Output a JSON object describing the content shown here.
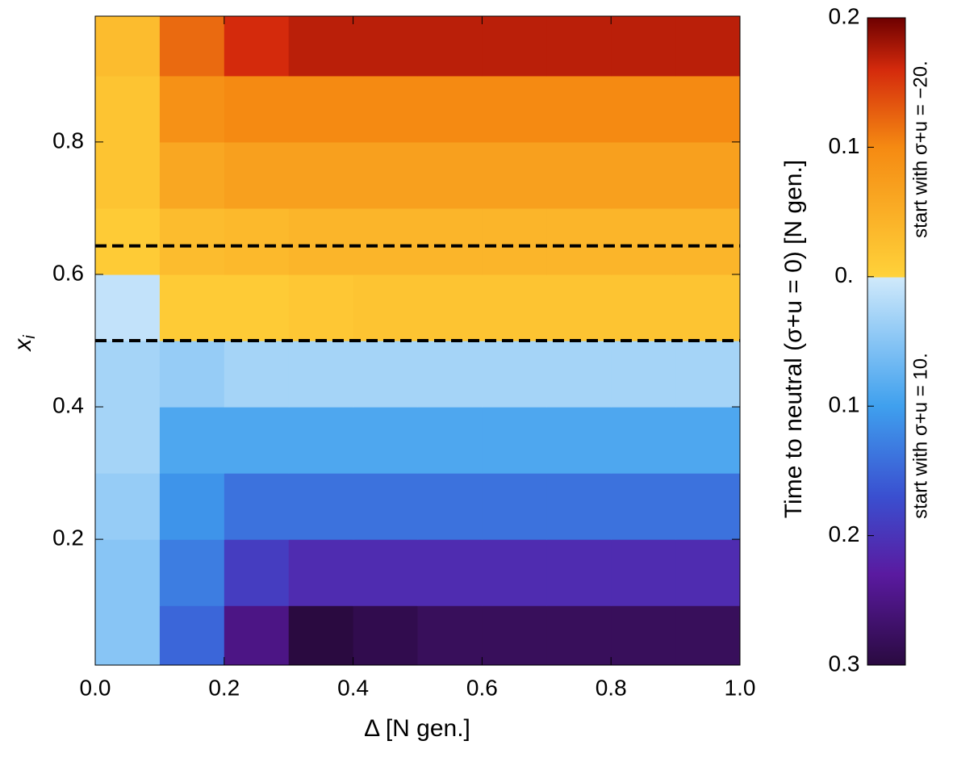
{
  "chart_data": {
    "type": "heatmap",
    "xlabel": "Δ  [N gen.]",
    "ylabel": "x",
    "ylabel_sub": "i",
    "colorbar_label": "Time to neutral (σ+u = 0)    [N gen.]",
    "annotations": [
      "start with  σ+u = −20.",
      "start with  σ+u = 10."
    ],
    "xlim": [
      0,
      1
    ],
    "ylim": [
      0.01,
      0.99
    ],
    "xticks": [
      {
        "value": 0,
        "label": "0.0"
      },
      0.2,
      0.4,
      0.6,
      0.8,
      {
        "value": 1,
        "label": "1.0"
      }
    ],
    "yticks": [
      0.2,
      0.4,
      0.6,
      0.8
    ],
    "hlines": [
      0.643,
      0.5
    ],
    "x": [
      0.05,
      0.15,
      0.25,
      0.35,
      0.45,
      0.55,
      0.65,
      0.75,
      0.85,
      0.95
    ],
    "y": [
      0.05,
      0.15,
      0.25,
      0.35,
      0.45,
      0.55,
      0.65,
      0.75,
      0.85,
      0.95
    ],
    "z": [
      [
        -0.05,
        -0.15,
        -0.25,
        -0.3,
        -0.29,
        -0.28,
        -0.28,
        -0.28,
        -0.28,
        -0.28
      ],
      [
        -0.05,
        -0.13,
        -0.19,
        -0.21,
        -0.21,
        -0.21,
        -0.21,
        -0.21,
        -0.21,
        -0.21
      ],
      [
        -0.04,
        -0.11,
        -0.14,
        -0.14,
        -0.14,
        -0.14,
        -0.14,
        -0.14,
        -0.14,
        -0.14
      ],
      [
        -0.03,
        -0.09,
        -0.09,
        -0.09,
        -0.09,
        -0.09,
        -0.09,
        -0.09,
        -0.09,
        -0.09
      ],
      [
        -0.03,
        -0.04,
        -0.03,
        -0.03,
        -0.03,
        -0.03,
        -0.03,
        -0.03,
        -0.03,
        -0.03
      ],
      [
        -0.01,
        0.01,
        0.01,
        0.015,
        0.02,
        0.02,
        0.02,
        0.02,
        0.02,
        0.02
      ],
      [
        0.01,
        0.03,
        0.035,
        0.04,
        0.04,
        0.04,
        0.04,
        0.04,
        0.04,
        0.04
      ],
      [
        0.02,
        0.06,
        0.07,
        0.07,
        0.07,
        0.07,
        0.07,
        0.07,
        0.07,
        0.07
      ],
      [
        0.02,
        0.09,
        0.1,
        0.1,
        0.1,
        0.1,
        0.1,
        0.1,
        0.1,
        0.1
      ],
      [
        0.03,
        0.12,
        0.16,
        0.17,
        0.17,
        0.17,
        0.17,
        0.17,
        0.17,
        0.17
      ]
    ],
    "clim": [
      -0.3,
      0.2
    ],
    "cticks": [
      {
        "value": 0.2,
        "label": "0.2"
      },
      0.1,
      {
        "value": 0,
        "label": "0."
      },
      {
        "value": -0.1,
        "label": "0.1"
      },
      {
        "value": -0.2,
        "label": "0.2"
      },
      {
        "value": -0.3,
        "label": "0.3"
      }
    ],
    "colorscale": [
      [
        -0.3,
        "#2a0a40"
      ],
      [
        -0.23,
        "#5a1aa0"
      ],
      [
        -0.17,
        "#3a4fd0"
      ],
      [
        -0.1,
        "#3fa0ee"
      ],
      [
        -0.001,
        "#cfe9fb"
      ],
      [
        0,
        "#ffd23a"
      ],
      [
        0.1,
        "#f58a12"
      ],
      [
        0.16,
        "#d42a0c"
      ],
      [
        0.2,
        "#6e0000"
      ]
    ]
  }
}
